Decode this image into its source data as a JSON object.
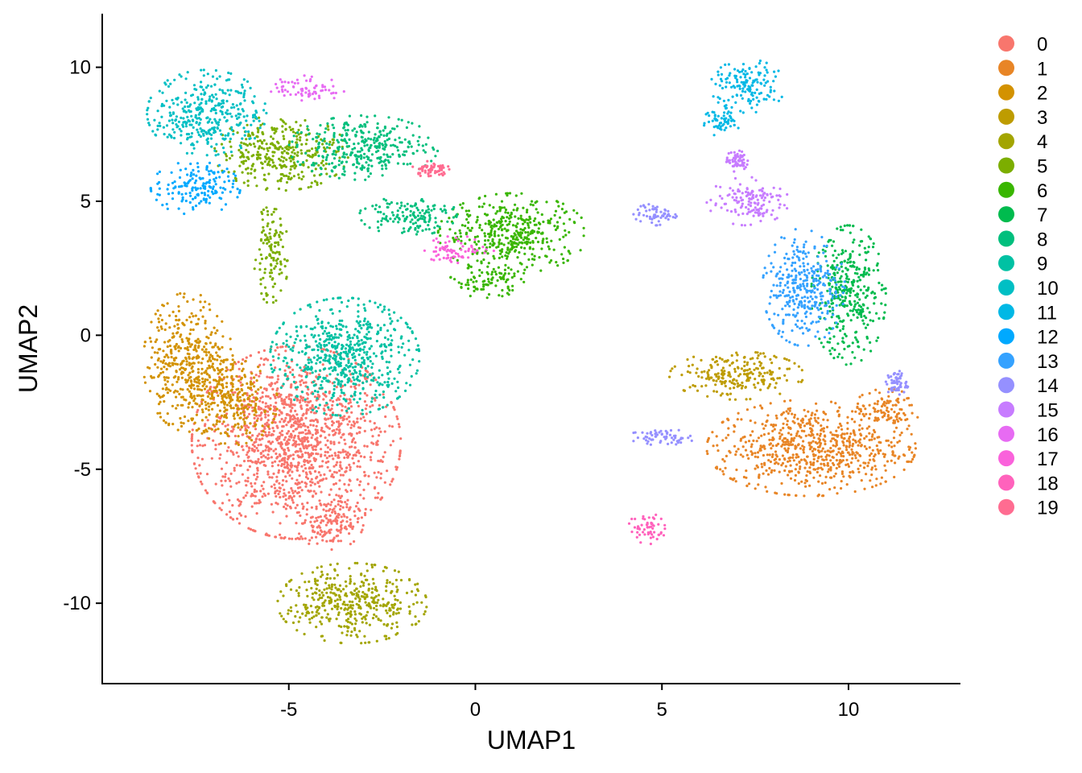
{
  "chart_data": {
    "type": "scatter",
    "title": "",
    "xlabel": "UMAP1",
    "ylabel": "UMAP2",
    "xlim": [
      -10,
      13
    ],
    "ylim": [
      -13,
      12
    ],
    "xticks": [
      -5,
      0,
      5,
      10
    ],
    "xtick_labels": [
      "-5",
      "0",
      "5",
      "10"
    ],
    "yticks": [
      -10,
      -5,
      0,
      5,
      10
    ],
    "ytick_labels": [
      "-10",
      "-5",
      "0",
      "5",
      "10"
    ],
    "grid": false,
    "legend_position": "right",
    "series": [
      {
        "name": "0",
        "color": "#F8766D",
        "blobs": [
          {
            "cx": -4.8,
            "cy": -4.0,
            "rx": 2.8,
            "ry": 3.6
          },
          {
            "cx": -3.9,
            "cy": -7.0,
            "rx": 0.9,
            "ry": 1.0
          }
        ]
      },
      {
        "name": "1",
        "color": "#E88526",
        "blobs": [
          {
            "cx": 9.0,
            "cy": -4.2,
            "rx": 2.8,
            "ry": 1.8
          },
          {
            "cx": 11.0,
            "cy": -2.8,
            "rx": 0.9,
            "ry": 0.8
          }
        ]
      },
      {
        "name": "2",
        "color": "#D39200",
        "blobs": [
          {
            "cx": -7.7,
            "cy": -1.0,
            "rx": 1.2,
            "ry": 2.6
          },
          {
            "cx": -6.5,
            "cy": -2.5,
            "rx": 1.2,
            "ry": 1.6
          }
        ]
      },
      {
        "name": "3",
        "color": "#BE9C00",
        "blobs": [
          {
            "cx": 7.0,
            "cy": -1.5,
            "rx": 1.8,
            "ry": 0.9
          }
        ]
      },
      {
        "name": "4",
        "color": "#A3A500",
        "blobs": [
          {
            "cx": -3.3,
            "cy": -10.0,
            "rx": 2.0,
            "ry": 1.5
          }
        ]
      },
      {
        "name": "5",
        "color": "#7CAE00",
        "blobs": [
          {
            "cx": -5.2,
            "cy": 6.8,
            "rx": 1.8,
            "ry": 1.4
          },
          {
            "cx": -5.5,
            "cy": 3.0,
            "rx": 0.5,
            "ry": 1.8
          }
        ]
      },
      {
        "name": "6",
        "color": "#39B600",
        "blobs": [
          {
            "cx": 1.0,
            "cy": 3.8,
            "rx": 2.0,
            "ry": 1.5
          },
          {
            "cx": 0.3,
            "cy": 2.0,
            "rx": 1.0,
            "ry": 0.6
          }
        ]
      },
      {
        "name": "7",
        "color": "#00BB4E",
        "blobs": [
          {
            "cx": 10.0,
            "cy": 1.5,
            "rx": 1.0,
            "ry": 2.6
          }
        ]
      },
      {
        "name": "8",
        "color": "#00BF7D",
        "blobs": [
          {
            "cx": -3.0,
            "cy": 7.0,
            "rx": 2.0,
            "ry": 1.2
          },
          {
            "cx": -1.8,
            "cy": 4.5,
            "rx": 1.3,
            "ry": 0.8
          }
        ]
      },
      {
        "name": "9",
        "color": "#00C1A3",
        "blobs": [
          {
            "cx": -3.5,
            "cy": -0.8,
            "rx": 2.0,
            "ry": 2.2
          }
        ]
      },
      {
        "name": "10",
        "color": "#00BFC4",
        "blobs": [
          {
            "cx": -7.2,
            "cy": 8.3,
            "rx": 1.6,
            "ry": 1.6
          }
        ]
      },
      {
        "name": "11",
        "color": "#00B8E5",
        "blobs": [
          {
            "cx": 7.3,
            "cy": 9.3,
            "rx": 1.0,
            "ry": 1.0
          },
          {
            "cx": 6.6,
            "cy": 8.0,
            "rx": 0.5,
            "ry": 0.6
          }
        ]
      },
      {
        "name": "12",
        "color": "#00A9FF",
        "blobs": [
          {
            "cx": -7.5,
            "cy": 5.5,
            "rx": 1.2,
            "ry": 1.0
          }
        ]
      },
      {
        "name": "13",
        "color": "#35A2FF",
        "blobs": [
          {
            "cx": 8.8,
            "cy": 1.8,
            "rx": 1.1,
            "ry": 2.2
          }
        ]
      },
      {
        "name": "14",
        "color": "#9590FF",
        "blobs": [
          {
            "cx": 5.0,
            "cy": -3.8,
            "rx": 0.9,
            "ry": 0.3
          },
          {
            "cx": 11.3,
            "cy": -1.8,
            "rx": 0.3,
            "ry": 0.5
          },
          {
            "cx": 4.8,
            "cy": 4.5,
            "rx": 0.6,
            "ry": 0.4
          }
        ]
      },
      {
        "name": "15",
        "color": "#C77CFF",
        "blobs": [
          {
            "cx": 7.3,
            "cy": 5.0,
            "rx": 1.1,
            "ry": 0.9
          },
          {
            "cx": 7.0,
            "cy": 6.5,
            "rx": 0.3,
            "ry": 0.4
          }
        ]
      },
      {
        "name": "16",
        "color": "#E76BF3",
        "blobs": [
          {
            "cx": -4.5,
            "cy": 9.2,
            "rx": 1.0,
            "ry": 0.5
          }
        ]
      },
      {
        "name": "17",
        "color": "#FA62DB",
        "blobs": [
          {
            "cx": -0.5,
            "cy": 3.2,
            "rx": 1.0,
            "ry": 0.5
          }
        ]
      },
      {
        "name": "18",
        "color": "#FF62BC",
        "blobs": [
          {
            "cx": 4.6,
            "cy": -7.2,
            "rx": 0.5,
            "ry": 0.6
          }
        ]
      },
      {
        "name": "19",
        "color": "#FF6C91",
        "blobs": [
          {
            "cx": -1.2,
            "cy": 6.2,
            "rx": 0.5,
            "ry": 0.3
          }
        ]
      }
    ]
  }
}
